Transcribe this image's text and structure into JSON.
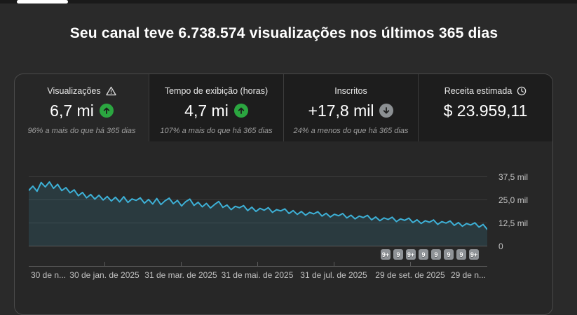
{
  "header": {
    "title": "Seu canal teve 6.738.574 visualizações nos últimos 365 dias"
  },
  "tabs": [
    {
      "label": "Visualizações",
      "value": "6,7 mi",
      "trend": "up",
      "sub": "96% a mais do que há 365 dias"
    },
    {
      "label": "Tempo de exibição (horas)",
      "value": "4,7 mi",
      "trend": "up",
      "sub": "107% a mais do que há 365 dias"
    },
    {
      "label": "Inscritos",
      "value": "+17,8 mil",
      "trend": "down",
      "sub": "24% a menos do que há 365 dias"
    },
    {
      "label": "Receita estimada",
      "value": "$ 23.959,11",
      "sub": ""
    }
  ],
  "chart_data": {
    "type": "area",
    "series_name": "Visualizações",
    "x_tick_labels": [
      "30 de n...",
      "30 de jan. de 2025",
      "31 de mar. de 2025",
      "31 de mai. de 2025",
      "31 de jul. de 2025",
      "29 de set. de 2025",
      "29 de n..."
    ],
    "y_tick_labels": [
      "37,5 mil",
      "25,0 mil",
      "12,5 mil",
      "0"
    ],
    "ylim_mil": [
      0,
      41
    ],
    "unit": "mil",
    "grid": true,
    "legend": "none",
    "values_mil": [
      30.3,
      32.6,
      29.8,
      34.6,
      32.2,
      34.9,
      31.4,
      33.6,
      30.2,
      31.8,
      29.0,
      30.6,
      27.4,
      29.2,
      26.3,
      28.1,
      25.6,
      27.7,
      25.1,
      27.0,
      24.6,
      26.6,
      24.1,
      26.9,
      23.8,
      25.7,
      24.9,
      26.3,
      23.4,
      25.4,
      22.9,
      25.9,
      22.6,
      24.7,
      26.1,
      23.1,
      24.9,
      21.9,
      24.2,
      25.6,
      22.2,
      23.9,
      21.4,
      23.3,
      20.8,
      22.7,
      24.3,
      21.1,
      22.4,
      19.9,
      21.7,
      20.9,
      22.1,
      19.4,
      21.2,
      18.9,
      20.6,
      19.6,
      21.0,
      18.4,
      19.9,
      19.2,
      20.3,
      17.8,
      19.4,
      17.3,
      18.9,
      16.9,
      18.4,
      17.6,
      18.8,
      16.4,
      17.9,
      15.9,
      17.4,
      16.6,
      17.8,
      15.4,
      16.9,
      14.9,
      16.4,
      15.6,
      16.8,
      14.4,
      15.9,
      13.9,
      15.4,
      14.6,
      15.8,
      13.4,
      14.9,
      14.1,
      15.3,
      12.9,
      14.4,
      12.4,
      13.9,
      13.1,
      14.3,
      11.9,
      13.4,
      12.6,
      13.8,
      11.4,
      12.9,
      10.9,
      12.4,
      11.6,
      12.8,
      10.4,
      11.9,
      9.2
    ],
    "video_markers": [
      "9+",
      "9",
      "9+",
      "9",
      "9",
      "9",
      "9",
      "9+"
    ]
  },
  "colors": {
    "line": "#3db0d6",
    "positive_badge": "#2ba640",
    "neutral_badge": "#8c9093",
    "panel_bg": "#272727",
    "inactive_tab_bg": "#1d1d1d",
    "page_bg": "#2a2a2a"
  }
}
